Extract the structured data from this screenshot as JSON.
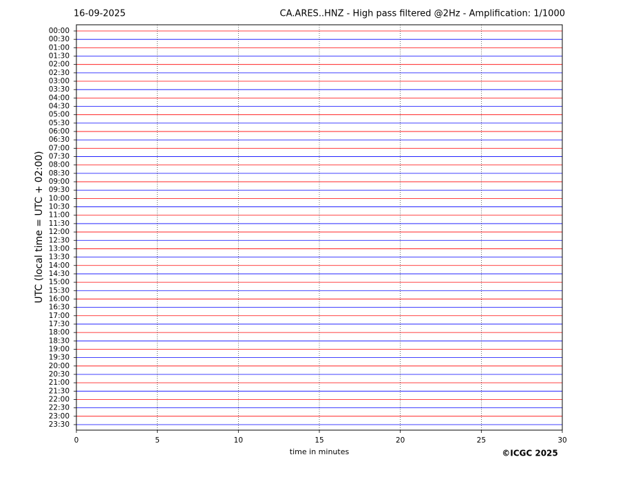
{
  "chart_data": {
    "type": "helicorder",
    "date": "16-09-2025",
    "title": "CA.ARES..HNZ - High pass filtered @2Hz - Amplification: 1/1000",
    "xlabel": "time in minutes",
    "ylabel": "UTC (local time = UTC + 02:00)",
    "credit": "©ICGC 2025",
    "categories": [
      "00:00",
      "00:30",
      "01:00",
      "01:30",
      "02:00",
      "02:30",
      "03:00",
      "03:30",
      "04:00",
      "04:30",
      "05:00",
      "05:30",
      "06:00",
      "06:30",
      "07:00",
      "07:30",
      "08:00",
      "08:30",
      "09:00",
      "09:30",
      "10:00",
      "10:30",
      "11:00",
      "11:30",
      "12:00",
      "12:30",
      "13:00",
      "13:30",
      "14:00",
      "14:30",
      "15:00",
      "15:30",
      "16:00",
      "16:30",
      "17:00",
      "17:30",
      "18:00",
      "18:30",
      "19:00",
      "19:30",
      "20:00",
      "20:30",
      "21:00",
      "21:30",
      "22:00",
      "22:30",
      "23:00",
      "23:30"
    ],
    "colors": [
      "#ff0000",
      "#0000ff"
    ],
    "xlim": [
      0,
      30
    ],
    "xticks": [
      0,
      5,
      10,
      15,
      20,
      25,
      30
    ],
    "grid": true
  }
}
